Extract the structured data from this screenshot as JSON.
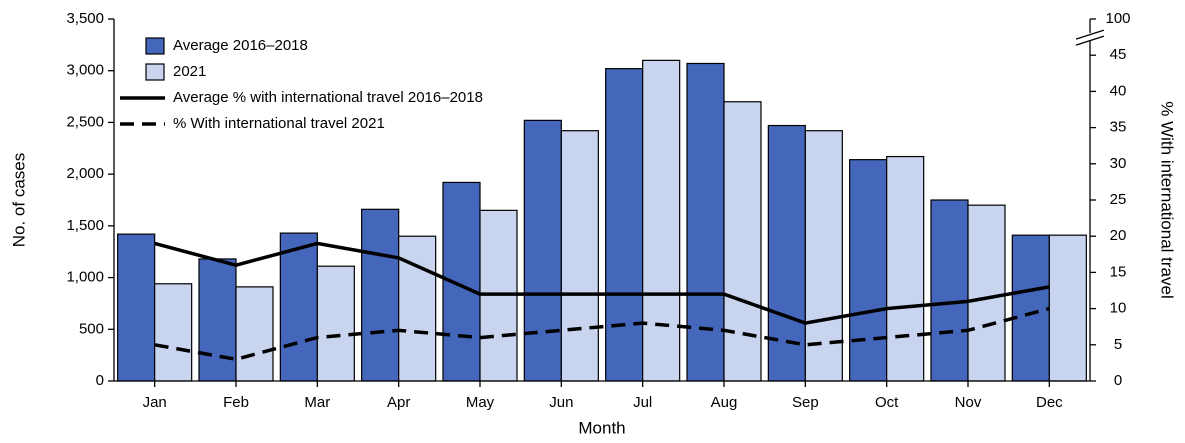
{
  "chart_data": {
    "type": "bar",
    "x_label": "Month",
    "y_label": "No. of cases",
    "y2_label": "% With international travel",
    "categories": [
      "Jan",
      "Feb",
      "Mar",
      "Apr",
      "May",
      "Jun",
      "Jul",
      "Aug",
      "Sep",
      "Oct",
      "Nov",
      "Dec"
    ],
    "series": [
      {
        "name": "Average 2016–2018",
        "type": "bar",
        "color": "#4466bb",
        "values": [
          1420,
          1180,
          1430,
          1660,
          1920,
          2520,
          3020,
          3070,
          2470,
          2140,
          1750,
          1410
        ]
      },
      {
        "name": "2021",
        "type": "bar",
        "color": "#c9d4ee",
        "values": [
          940,
          910,
          1110,
          1400,
          1650,
          2420,
          3100,
          2700,
          2420,
          2170,
          1700,
          1410
        ]
      },
      {
        "name": "Average % with international travel 2016–2018",
        "type": "line",
        "axis": "y2",
        "color": "#000000",
        "line_style": "solid",
        "values": [
          19,
          16,
          19,
          17,
          12,
          12,
          12,
          12,
          8,
          10,
          11,
          13
        ]
      },
      {
        "name": "% With international travel 2021",
        "type": "line",
        "axis": "y2",
        "color": "#000000",
        "line_style": "dashed",
        "values": [
          5,
          3,
          6,
          7,
          6,
          7,
          8,
          7,
          5,
          6,
          7,
          10
        ]
      }
    ],
    "ylim": [
      0,
      3500
    ],
    "yticks": [
      0,
      500,
      {
        "value": 1000,
        "label": "1,000"
      },
      {
        "value": 1500,
        "label": "1,500"
      },
      {
        "value": 2000,
        "label": "2,000"
      },
      {
        "value": 2500,
        "label": "2,500"
      },
      {
        "value": 3000,
        "label": "3,000"
      },
      {
        "value": 3500,
        "label": "3,500"
      }
    ],
    "y2lim": [
      0,
      100
    ],
    "y2ticks": [
      0,
      5,
      10,
      15,
      20,
      25,
      30,
      35,
      40,
      45,
      100
    ],
    "y2break": [
      45,
      100
    ],
    "legend": "upper left",
    "grid": false
  }
}
